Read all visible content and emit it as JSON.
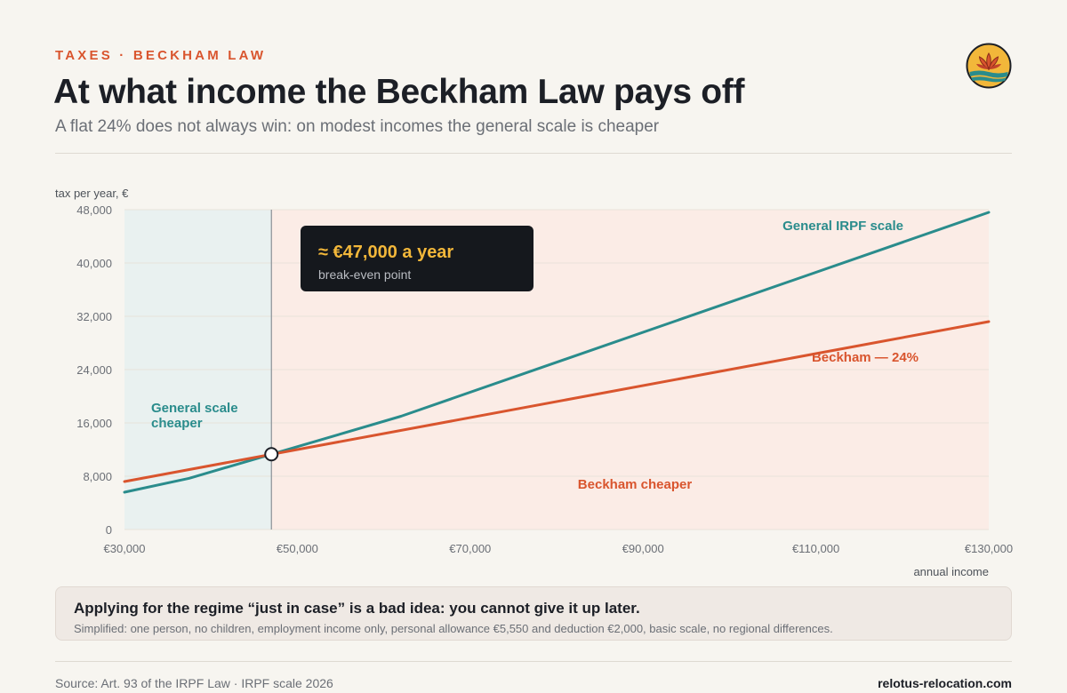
{
  "header": {
    "kicker": "TAXES · BECKHAM LAW",
    "title": "At what income the Beckham Law pays off",
    "subtitle": "A flat 24% does not always win: on modest incomes the general scale is cheaper"
  },
  "logo": {
    "icon": "lotus-logo-icon"
  },
  "chart_data": {
    "type": "line",
    "ylabel": "tax per year, €",
    "xlabel": "annual income",
    "xlim": [
      30000,
      130000
    ],
    "ylim": [
      0,
      48000
    ],
    "x_ticks": [
      30000,
      50000,
      70000,
      90000,
      110000,
      130000
    ],
    "x_tick_labels": [
      "€30,000",
      "€50,000",
      "€70,000",
      "€90,000",
      "€110,000",
      "€130,000"
    ],
    "y_ticks": [
      0,
      8000,
      16000,
      24000,
      32000,
      40000,
      48000
    ],
    "y_tick_labels": [
      "0",
      "8,000",
      "16,000",
      "24,000",
      "32,000",
      "40,000",
      "48,000"
    ],
    "grid": true,
    "series": [
      {
        "name": "General IRPF scale",
        "color": "#2a8c8c",
        "x": [
          30000,
          37500,
          47000,
          62000,
          130000
        ],
        "y": [
          5600,
          7700,
          11300,
          17000,
          47600
        ]
      },
      {
        "name": "Beckham — 24%",
        "color": "#d9552e",
        "x": [
          30000,
          130000
        ],
        "y": [
          7200,
          31200
        ]
      }
    ],
    "break_even": {
      "x": 47000,
      "y": 11300,
      "label": "≈ €47,000 a year",
      "caption": "break-even point"
    },
    "regions": [
      {
        "label_lines": [
          "General scale",
          "cheaper"
        ],
        "from": 30000,
        "to": 47000,
        "color": "#2a8c8c"
      },
      {
        "label_lines": [
          "Beckham cheaper"
        ],
        "from": 47000,
        "to": 130000,
        "color": "#d9552e"
      }
    ]
  },
  "note": {
    "main": "Applying for the regime “just in case” is a bad idea: you cannot give it up later.",
    "sub": "Simplified: one person, no children, employment income only, personal allowance €5,550 and deduction €2,000, basic scale, no regional differences."
  },
  "footer": {
    "source": "Source: Art. 93 of the IRPF Law · IRPF scale 2026",
    "site": "relotus-relocation.com"
  }
}
